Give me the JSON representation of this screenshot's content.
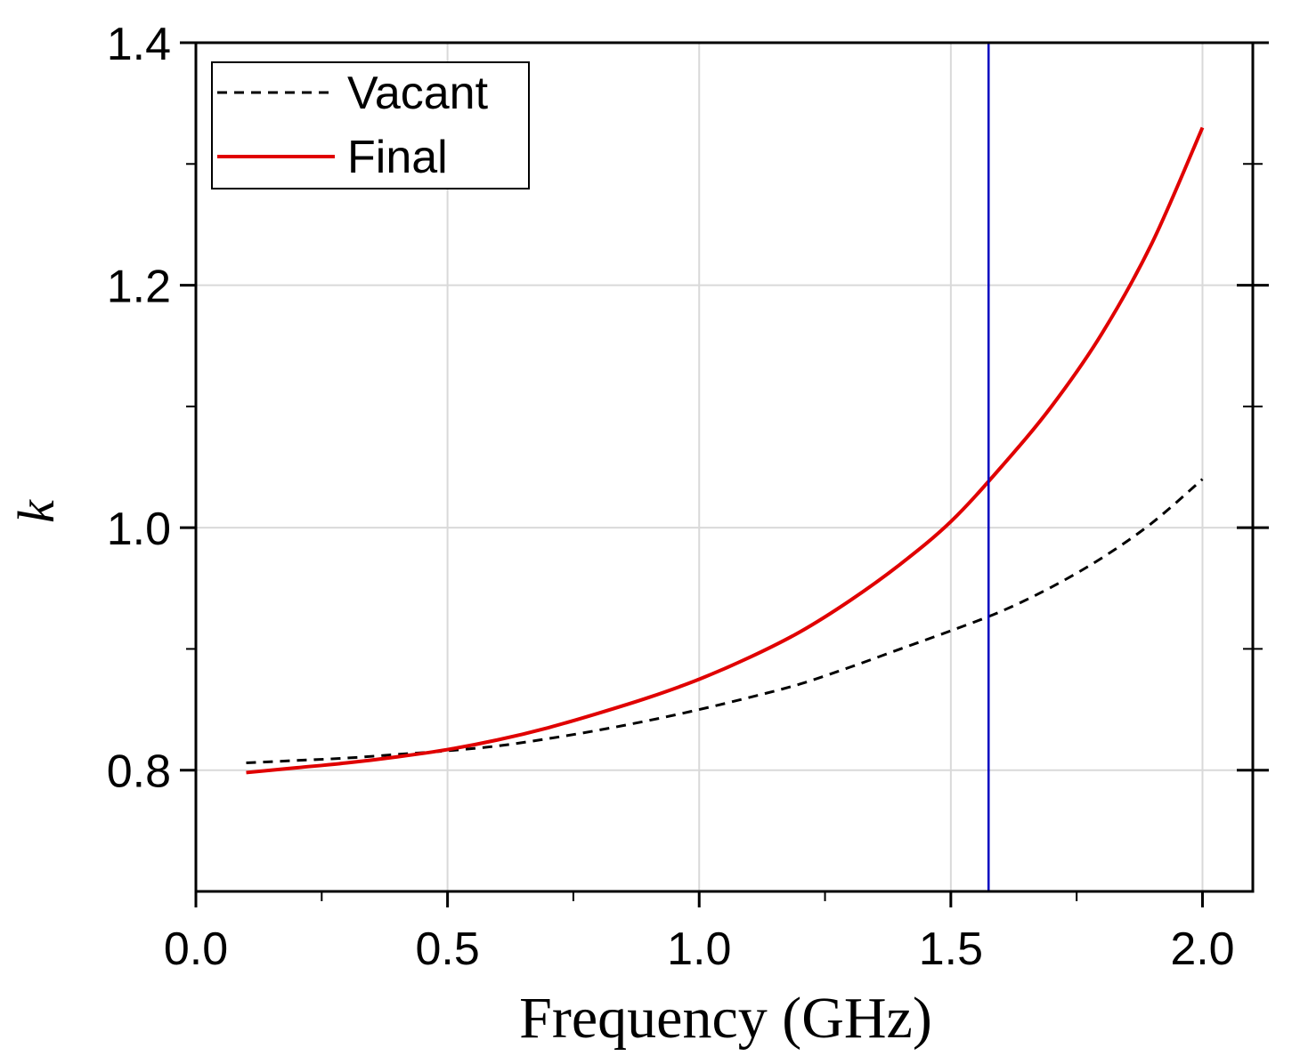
{
  "chart_data": {
    "type": "line",
    "title": "",
    "xlabel": "Frequency (GHz)",
    "ylabel": "k",
    "xlim": [
      0.0,
      2.1
    ],
    "ylim": [
      0.7,
      1.4
    ],
    "x_major_ticks": [
      0.0,
      0.5,
      1.0,
      1.5,
      2.0
    ],
    "x_tick_labels": [
      "0.0",
      "0.5",
      "1.0",
      "1.5",
      "2.0"
    ],
    "x_minor_ticks": [
      0.25,
      0.75,
      1.25,
      1.75
    ],
    "y_major_ticks": [
      0.8,
      1.0,
      1.2,
      1.4
    ],
    "y_tick_labels": [
      "0.8",
      "1.0",
      "1.2",
      "1.4"
    ],
    "y_minor_ticks": [
      0.9,
      1.1,
      1.3
    ],
    "grid": true,
    "legend_position": "top-left",
    "marker_line": {
      "x": 1.575,
      "color": "#0000c0"
    },
    "series": [
      {
        "name": "Vacant",
        "style": "dashed",
        "color": "#000000",
        "x": [
          0.1,
          0.2,
          0.3,
          0.4,
          0.5,
          0.6,
          0.7,
          0.8,
          0.9,
          1.0,
          1.1,
          1.2,
          1.3,
          1.4,
          1.5,
          1.6,
          1.7,
          1.8,
          1.9,
          2.0
        ],
        "y": [
          0.806,
          0.808,
          0.81,
          0.813,
          0.816,
          0.82,
          0.826,
          0.833,
          0.841,
          0.85,
          0.86,
          0.871,
          0.885,
          0.9,
          0.915,
          0.931,
          0.951,
          0.975,
          1.004,
          1.04
        ]
      },
      {
        "name": "Final",
        "style": "solid",
        "color": "#e00000",
        "x": [
          0.1,
          0.2,
          0.3,
          0.4,
          0.5,
          0.6,
          0.7,
          0.8,
          0.9,
          1.0,
          1.1,
          1.2,
          1.3,
          1.4,
          1.5,
          1.6,
          1.7,
          1.8,
          1.9,
          2.0
        ],
        "y": [
          0.798,
          0.802,
          0.806,
          0.811,
          0.817,
          0.825,
          0.835,
          0.847,
          0.86,
          0.875,
          0.893,
          0.914,
          0.94,
          0.97,
          1.005,
          1.05,
          1.1,
          1.16,
          1.235,
          1.33
        ]
      }
    ]
  }
}
